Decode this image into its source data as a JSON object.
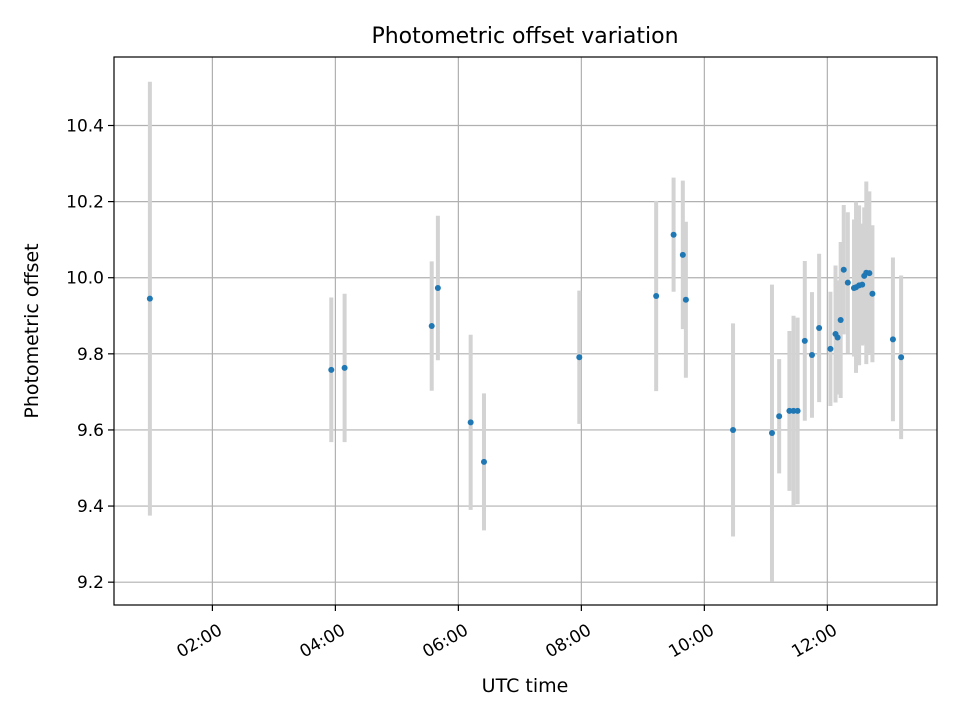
{
  "chart_data": {
    "type": "scatter",
    "title": "Photometric offset variation",
    "xlabel": "UTC time",
    "ylabel": "Photometric offset",
    "x_is_time": true,
    "xlim": [
      "00:24",
      "13:47"
    ],
    "ylim": [
      9.14,
      10.58
    ],
    "xticks": [
      "02:00",
      "04:00",
      "06:00",
      "08:00",
      "10:00",
      "12:00"
    ],
    "yticks": [
      "9.2",
      "9.4",
      "9.6",
      "9.8",
      "10.0",
      "10.2",
      "10.4"
    ],
    "grid": true,
    "legend": "none",
    "colors": {
      "point": "#1f77b4",
      "errorbar": "#d3d3d3",
      "grid": "#b0b0b0"
    },
    "points": [
      {
        "t": "00:59",
        "y": 9.945,
        "err": 0.57
      },
      {
        "t": "03:56",
        "y": 9.758,
        "err": 0.19
      },
      {
        "t": "04:09",
        "y": 9.763,
        "err": 0.195
      },
      {
        "t": "05:34",
        "y": 9.873,
        "err": 0.17
      },
      {
        "t": "05:40",
        "y": 9.973,
        "err": 0.19
      },
      {
        "t": "06:12",
        "y": 9.62,
        "err": 0.23
      },
      {
        "t": "06:25",
        "y": 9.516,
        "err": 0.18
      },
      {
        "t": "07:58",
        "y": 9.791,
        "err": 0.175
      },
      {
        "t": "09:13",
        "y": 9.952,
        "err": 0.25
      },
      {
        "t": "09:30",
        "y": 10.113,
        "err": 0.15
      },
      {
        "t": "09:39",
        "y": 10.06,
        "err": 0.195
      },
      {
        "t": "09:42",
        "y": 9.942,
        "err": 0.205
      },
      {
        "t": "10:28",
        "y": 9.6,
        "err": 0.28
      },
      {
        "t": "11:06",
        "y": 9.592,
        "err": 0.39
      },
      {
        "t": "11:13",
        "y": 9.636,
        "err": 0.15
      },
      {
        "t": "11:23",
        "y": 9.65,
        "err": 0.21
      },
      {
        "t": "11:27",
        "y": 9.65,
        "err": 0.25
      },
      {
        "t": "11:31",
        "y": 9.65,
        "err": 0.245
      },
      {
        "t": "11:38",
        "y": 9.834,
        "err": 0.21
      },
      {
        "t": "11:45",
        "y": 9.797,
        "err": 0.165
      },
      {
        "t": "11:52",
        "y": 9.868,
        "err": 0.195
      },
      {
        "t": "12:03",
        "y": 9.813,
        "err": 0.15
      },
      {
        "t": "12:08",
        "y": 9.852,
        "err": 0.18
      },
      {
        "t": "12:10",
        "y": 9.843,
        "err": 0.15
      },
      {
        "t": "12:13",
        "y": 9.889,
        "err": 0.205
      },
      {
        "t": "12:16",
        "y": 10.021,
        "err": 0.17
      },
      {
        "t": "12:20",
        "y": 9.987,
        "err": 0.185
      },
      {
        "t": "12:26",
        "y": 9.973,
        "err": 0.18
      },
      {
        "t": "12:28",
        "y": 9.975,
        "err": 0.225
      },
      {
        "t": "12:31",
        "y": 9.98,
        "err": 0.21
      },
      {
        "t": "12:34",
        "y": 9.982,
        "err": 0.16
      },
      {
        "t": "12:36",
        "y": 10.005,
        "err": 0.18
      },
      {
        "t": "12:38",
        "y": 10.013,
        "err": 0.24
      },
      {
        "t": "12:41",
        "y": 10.012,
        "err": 0.215
      },
      {
        "t": "12:44",
        "y": 9.958,
        "err": 0.18
      },
      {
        "t": "13:04",
        "y": 9.838,
        "err": 0.215
      },
      {
        "t": "13:12",
        "y": 9.791,
        "err": 0.215
      }
    ]
  }
}
